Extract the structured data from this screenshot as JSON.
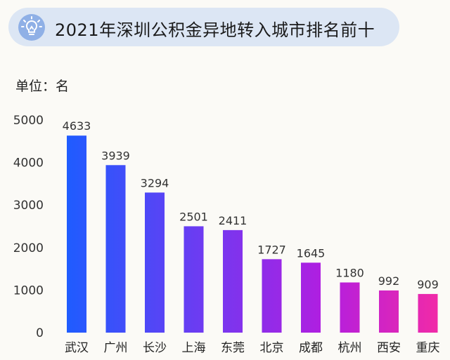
{
  "title": "2021年深圳公积金异地转入城市排名前十",
  "unit_label": "单位：名",
  "icon": "lightbulb-icon",
  "colors": {
    "pill": "#dce6f4",
    "icon_bg": "#8fb0e6",
    "bar_gradient": [
      "#1f5cff",
      "#6b3cf2",
      "#b21ee0",
      "#f02aa8"
    ]
  },
  "chart_data": {
    "type": "bar",
    "title": "2021年深圳公积金异地转入城市排名前十",
    "ylabel": "单位：名",
    "categories": [
      "武汉",
      "广州",
      "长沙",
      "上海",
      "东莞",
      "北京",
      "成都",
      "杭州",
      "西安",
      "重庆"
    ],
    "values": [
      4633,
      3939,
      3294,
      2501,
      2411,
      1727,
      1645,
      1180,
      992,
      909
    ],
    "yticks": [
      0,
      1000,
      2000,
      3000,
      4000,
      5000
    ],
    "ylim": [
      0,
      5000
    ],
    "grid": false,
    "data_labels": true
  }
}
